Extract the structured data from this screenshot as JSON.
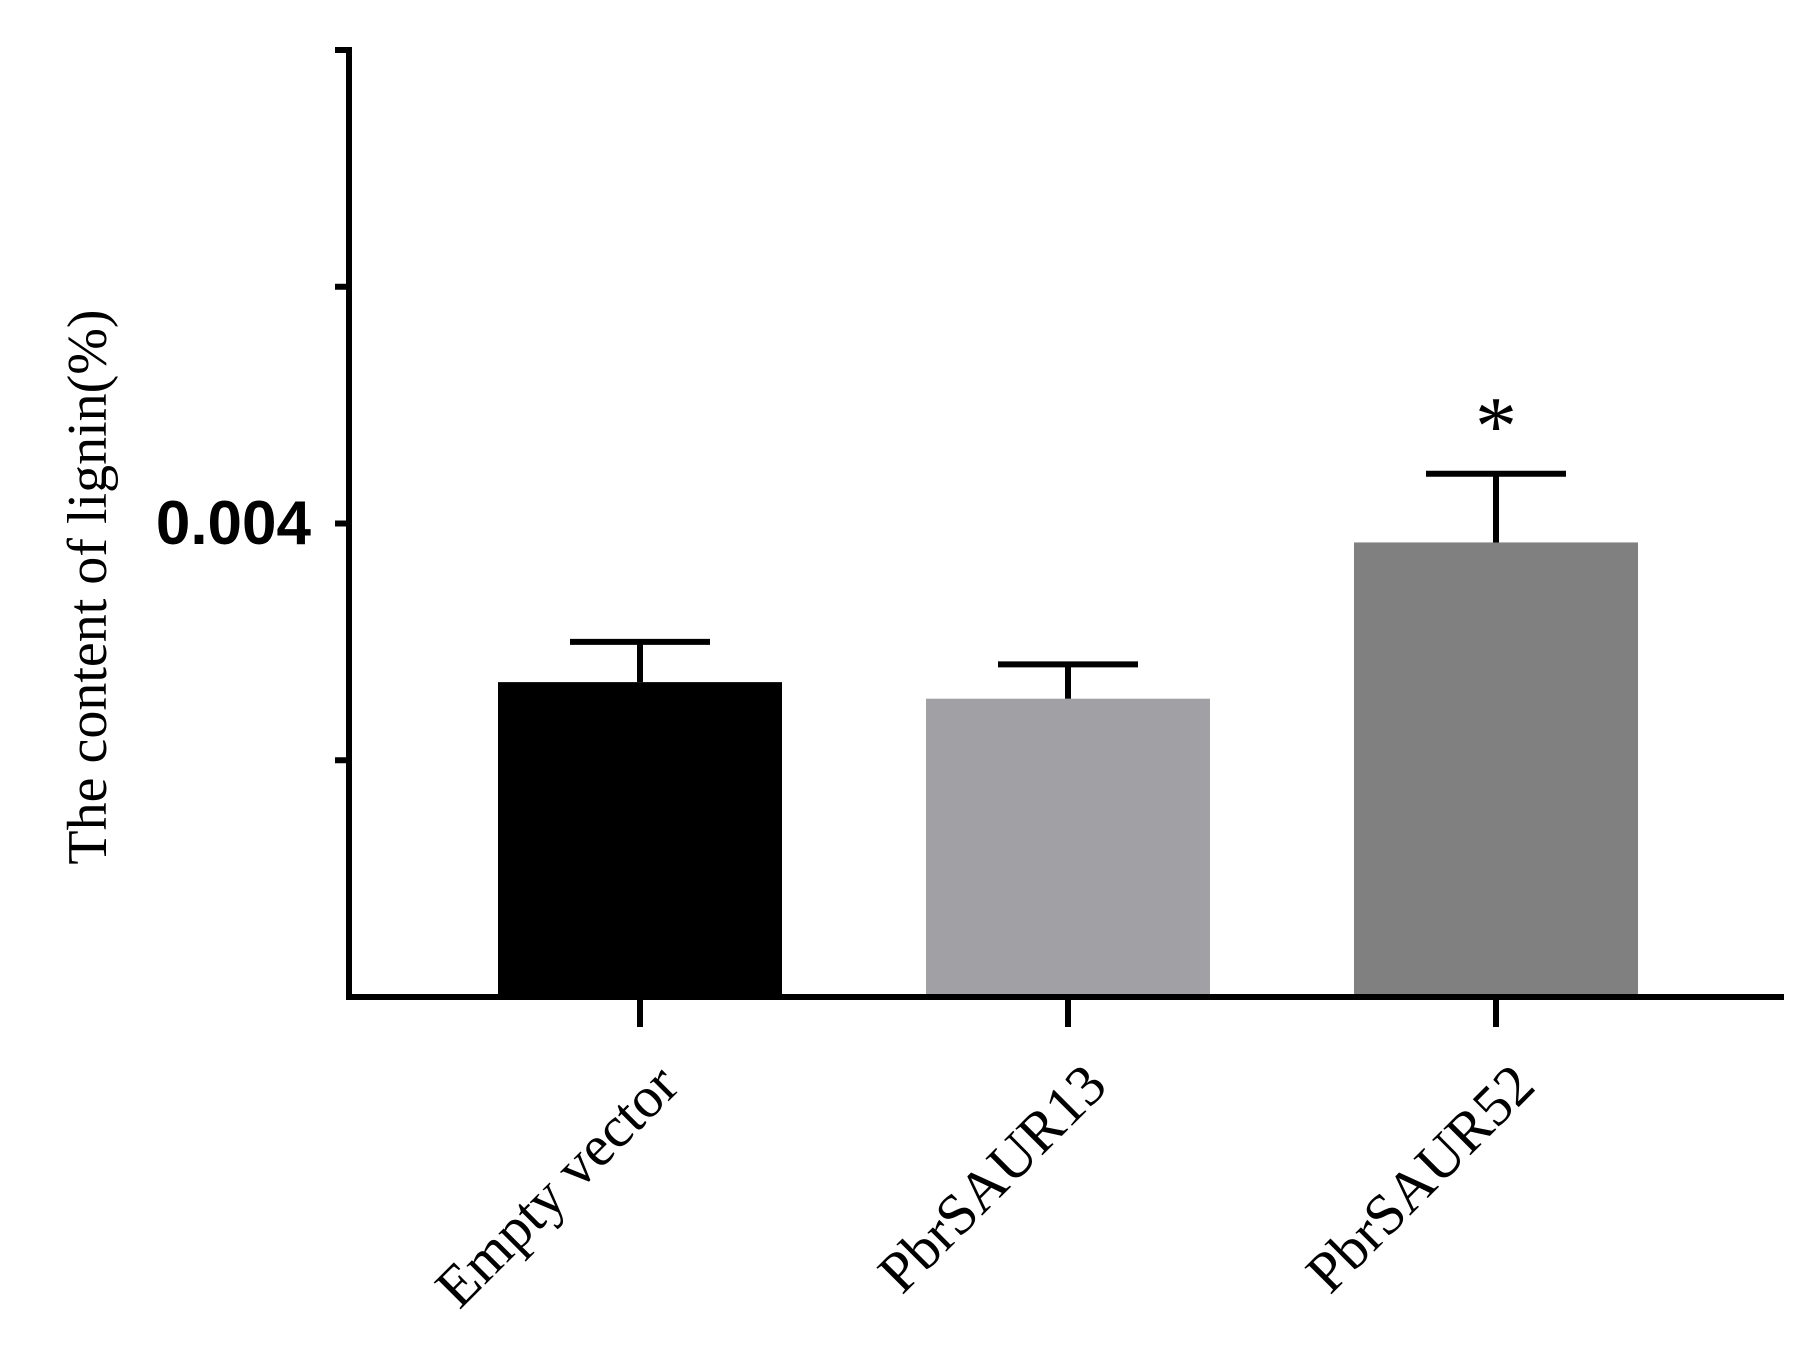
{
  "chart_data": {
    "type": "bar",
    "categories": [
      "Empty vector",
      "PbrSAUR13",
      "PbrSAUR52"
    ],
    "values": [
      0.00266,
      0.00252,
      0.00384
    ],
    "errors": [
      0.00034,
      0.00029,
      0.00058
    ],
    "colors": [
      "#000000",
      "#a1a0a5",
      "#808080"
    ],
    "annotations": [
      "",
      "",
      "*"
    ],
    "ylabel": "The content of lignin(%)",
    "xlabel": "",
    "ylim": [
      0,
      0.008
    ],
    "yticks": [
      0,
      0.002,
      0.004,
      0.006,
      0.008
    ],
    "ytick_labels": [
      "",
      "",
      "0.004",
      "",
      ""
    ],
    "grid": false,
    "legend": "none"
  }
}
